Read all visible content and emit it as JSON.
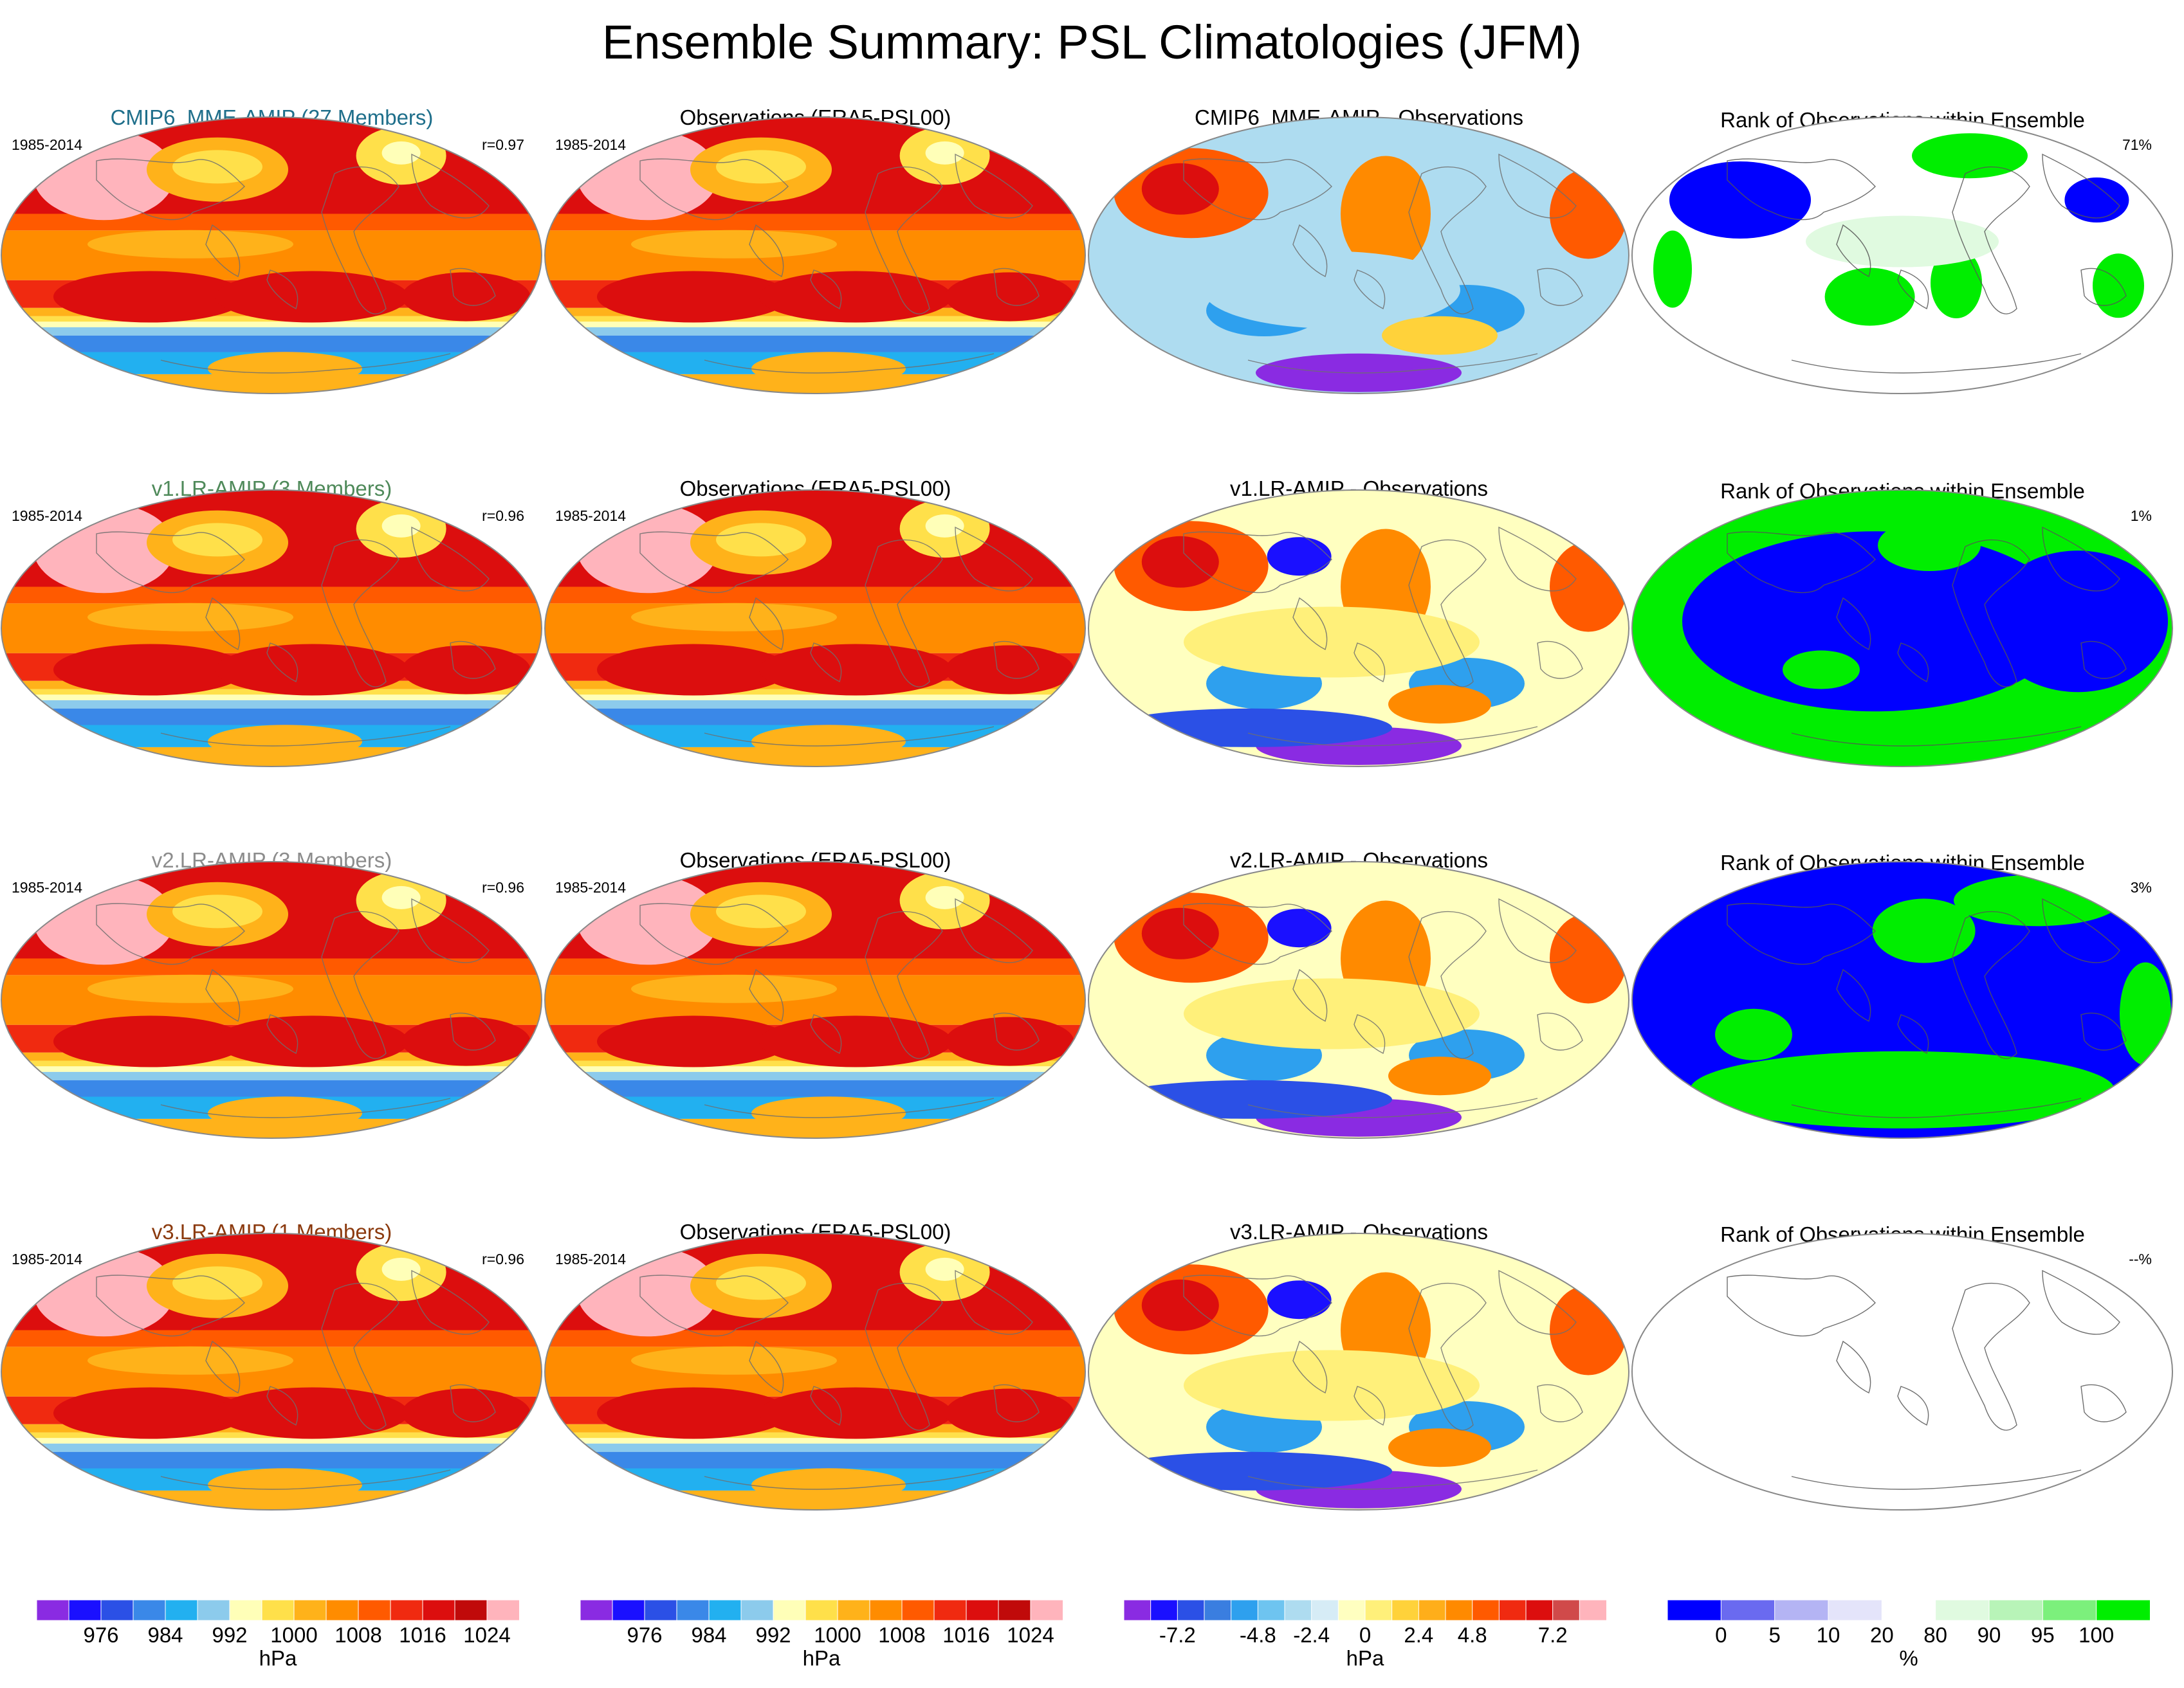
{
  "title": "Ensemble Summary: PSL Climatologies (JFM)",
  "chart_data": {
    "type": "heatmap",
    "title": "Ensemble Summary: PSL Climatologies (JFM)",
    "rows": [
      {
        "model_title": "CMIP6_MME-AMIP (27 Members)",
        "model_title_color": "#1f6f8b",
        "period": "1985-2014",
        "correlation": "r=0.97",
        "obs_title": "Observations (ERA5-PSL00)",
        "obs_period": "1985-2014",
        "diff_title": "CMIP6_MME-AMIP - Observations",
        "rank_title": "Rank of Observations within Ensemble",
        "rank_pct": "71%",
        "rank_pattern": "mixed"
      },
      {
        "model_title": "v1.LR-AMIP (3 Members)",
        "model_title_color": "#4f8a5a",
        "period": "1985-2014",
        "correlation": "r=0.96",
        "obs_title": "Observations (ERA5-PSL00)",
        "obs_period": "1985-2014",
        "diff_title": "v1.LR-AMIP - Observations",
        "rank_title": "Rank of Observations within Ensemble",
        "rank_pct": "1%",
        "rank_pattern": "binary"
      },
      {
        "model_title": "v2.LR-AMIP (3 Members)",
        "model_title_color": "#8c8c8c",
        "period": "1985-2014",
        "correlation": "r=0.96",
        "obs_title": "Observations (ERA5-PSL00)",
        "obs_period": "1985-2014",
        "diff_title": "v2.LR-AMIP - Observations",
        "rank_title": "Rank of Observations within Ensemble",
        "rank_pct": "3%",
        "rank_pattern": "binary2"
      },
      {
        "model_title": "v3.LR-AMIP (1 Members)",
        "model_title_color": "#8b3a0e",
        "period": "1985-2014",
        "correlation": "r=0.96",
        "obs_title": "Observations (ERA5-PSL00)",
        "obs_period": "1985-2014",
        "diff_title": "v3.LR-AMIP - Observations",
        "rank_title": "Rank of Observations within Ensemble",
        "rank_pct": "--%",
        "rank_pattern": "empty"
      }
    ],
    "colorbars": [
      {
        "unit": "hPa",
        "ticks": [
          "976",
          "984",
          "992",
          "1000",
          "1008",
          "1016",
          "1024"
        ],
        "colors": [
          "#8a2be2",
          "#1a10ff",
          "#2b50e6",
          "#3a88e8",
          "#22b0f0",
          "#8ccbec",
          "#ffffb8",
          "#ffe04a",
          "#ffb21a",
          "#ff8c00",
          "#ff5a00",
          "#f02a10",
          "#dc0e0e",
          "#c00a0a",
          "#ffb4bc"
        ]
      },
      {
        "unit": "hPa",
        "ticks": [
          "976",
          "984",
          "992",
          "1000",
          "1008",
          "1016",
          "1024"
        ],
        "colors": [
          "#8a2be2",
          "#1a10ff",
          "#2b50e6",
          "#3a88e8",
          "#22b0f0",
          "#8ccbec",
          "#ffffb8",
          "#ffe04a",
          "#ffb21a",
          "#ff8c00",
          "#ff5a00",
          "#f02a10",
          "#dc0e0e",
          "#c00a0a",
          "#ffb4bc"
        ]
      },
      {
        "unit": "hPa",
        "ticks": [
          "-7.2",
          "-4.8",
          "-2.4",
          "0",
          "2.4",
          "4.8",
          "7.2"
        ],
        "colors": [
          "#8a2be2",
          "#1a10ff",
          "#2b50e6",
          "#3a7ee0",
          "#2ea0ee",
          "#6ec4f0",
          "#aedcf0",
          "#d6ecf6",
          "#ffffc0",
          "#fff07a",
          "#ffd23a",
          "#ffae1a",
          "#ff8a00",
          "#ff5a00",
          "#f02a10",
          "#dc0e0e",
          "#d04a4a",
          "#ffb4bc"
        ]
      },
      {
        "unit": "%",
        "ticks": [
          "0",
          "5",
          "10",
          "20",
          "80",
          "90",
          "95",
          "100"
        ],
        "colors": [
          "#0000ff",
          "#6a6af0",
          "#b4b4f4",
          "#e4e4fa",
          "#ffffff",
          "#e0fae0",
          "#b8f4b8",
          "#7cf07c",
          "#00ee00"
        ]
      }
    ]
  }
}
